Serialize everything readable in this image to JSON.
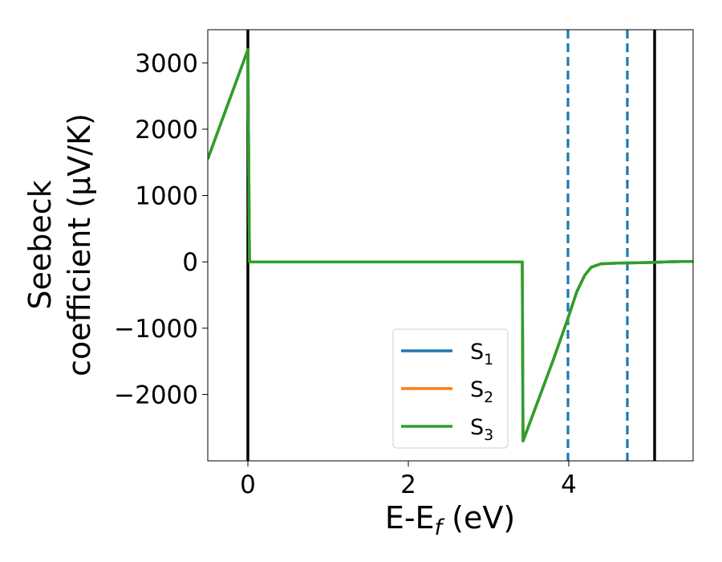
{
  "chart_data": {
    "type": "line",
    "title": "",
    "xlabel": "E-E",
    "xlabel_sub": "f",
    "xlabel_unit": " (eV)",
    "ylabel_line1": "Seebeck",
    "ylabel_line2": "coefficient  (μV/K)",
    "xlim": [
      -0.5,
      5.55
    ],
    "ylim": [
      -3000,
      3500
    ],
    "xticks": [
      0,
      2,
      4
    ],
    "yticks": [
      -2000,
      -1000,
      0,
      1000,
      2000,
      3000
    ],
    "grid": false,
    "legend_position": "lower-center",
    "vertical_lines": [
      {
        "x": 0,
        "style": "solid",
        "color": "#000000"
      },
      {
        "x": 5.07,
        "style": "solid",
        "color": "#000000"
      },
      {
        "x": 3.99,
        "style": "dashed",
        "color": "#1f77b4"
      },
      {
        "x": 4.73,
        "style": "dashed",
        "color": "#1f77b4"
      }
    ],
    "series": [
      {
        "name": "S",
        "sub": "1",
        "color": "#1f77b4",
        "x": [
          -0.5,
          0.0,
          0.02,
          3.42,
          3.43,
          3.6,
          3.8,
          3.99,
          4.1,
          4.2,
          4.28,
          4.4,
          4.6,
          4.8,
          5.0,
          5.2,
          5.4,
          5.55
        ],
        "y": [
          1550,
          3200,
          0,
          0,
          -2700,
          -2150,
          -1500,
          -850,
          -450,
          -200,
          -80,
          -30,
          -20,
          -15,
          -10,
          0,
          5,
          5
        ]
      },
      {
        "name": "S",
        "sub": "2",
        "color": "#ff7f0e",
        "x": [
          -0.5,
          0.0,
          0.02,
          3.42,
          3.43,
          3.6,
          3.8,
          3.99,
          4.1,
          4.2,
          4.28,
          4.4,
          4.6,
          4.8,
          5.0,
          5.2,
          5.4,
          5.55
        ],
        "y": [
          1550,
          3200,
          0,
          0,
          -2700,
          -2150,
          -1500,
          -850,
          -450,
          -200,
          -80,
          -30,
          -20,
          -15,
          -10,
          0,
          5,
          5
        ]
      },
      {
        "name": "S",
        "sub": "3",
        "color": "#2ca02c",
        "x": [
          -0.5,
          0.0,
          0.02,
          3.42,
          3.43,
          3.6,
          3.8,
          3.99,
          4.1,
          4.2,
          4.28,
          4.4,
          4.6,
          4.8,
          5.0,
          5.2,
          5.4,
          5.55
        ],
        "y": [
          1550,
          3200,
          0,
          0,
          -2700,
          -2150,
          -1500,
          -850,
          -450,
          -200,
          -80,
          -30,
          -20,
          -15,
          -10,
          0,
          5,
          5
        ]
      }
    ]
  }
}
